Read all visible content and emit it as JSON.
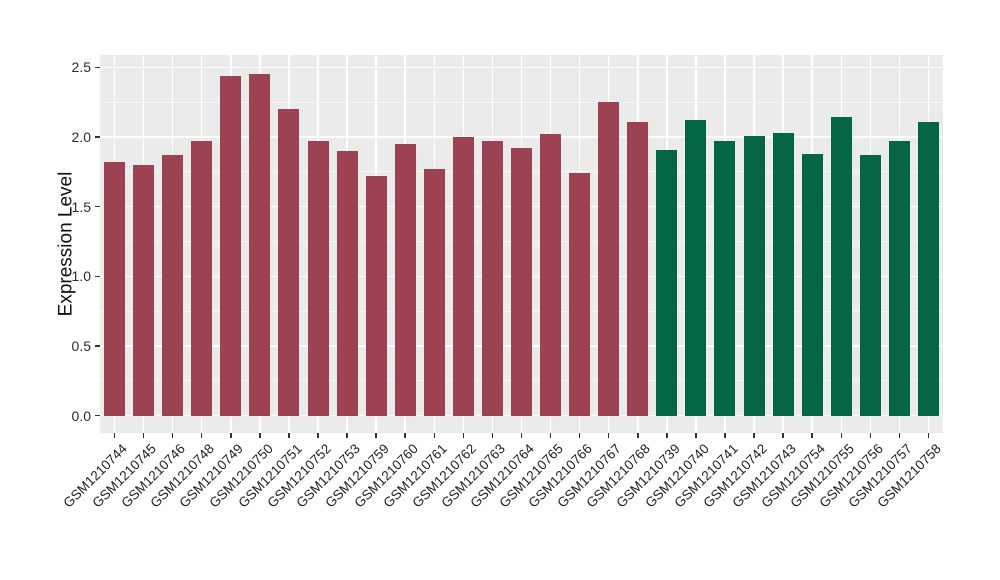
{
  "chart_data": {
    "type": "bar",
    "title": "",
    "ylabel": "Expression Level",
    "xlabel": "",
    "categories": [
      "GSM1210744",
      "GSM1210745",
      "GSM1210746",
      "GSM1210748",
      "GSM1210749",
      "GSM1210750",
      "GSM1210751",
      "GSM1210752",
      "GSM1210753",
      "GSM1210759",
      "GSM1210760",
      "GSM1210761",
      "GSM1210762",
      "GSM1210763",
      "GSM1210764",
      "GSM1210765",
      "GSM1210766",
      "GSM1210767",
      "GSM1210768",
      "GSM1210739",
      "GSM1210740",
      "GSM1210741",
      "GSM1210742",
      "GSM1210743",
      "GSM1210754",
      "GSM1210755",
      "GSM1210756",
      "GSM1210757",
      "GSM1210758"
    ],
    "values": [
      1.82,
      1.8,
      1.87,
      1.97,
      2.44,
      2.45,
      2.2,
      1.97,
      1.9,
      1.72,
      1.95,
      1.77,
      2.0,
      1.97,
      1.92,
      2.02,
      1.74,
      2.25,
      2.11,
      1.91,
      2.12,
      1.97,
      2.01,
      2.03,
      1.88,
      2.14,
      1.87,
      1.97,
      2.11
    ],
    "group_colors": [
      {
        "color": "#9C4252",
        "count": 19
      },
      {
        "color": "#056647",
        "count": 10
      }
    ],
    "ylim": [
      0,
      2.5
    ],
    "yticks": [
      "0.0",
      "0.5",
      "1.0",
      "1.5",
      "2.0",
      "2.5"
    ],
    "ytick_values": [
      0,
      0.5,
      1.0,
      1.5,
      2.0,
      2.5
    ],
    "legend": "none",
    "grid": "white major and minor horizontal lines, white vertical line per category, gray panel"
  },
  "style": {
    "background": "#FFFFFF",
    "panel_bg": "#EBEBEB",
    "grid_major": "#FFFFFF",
    "bar_maroon": "#9C4252",
    "bar_green": "#056647",
    "axis_text_color": "#1F1F1F",
    "tick_color": "#333333"
  }
}
